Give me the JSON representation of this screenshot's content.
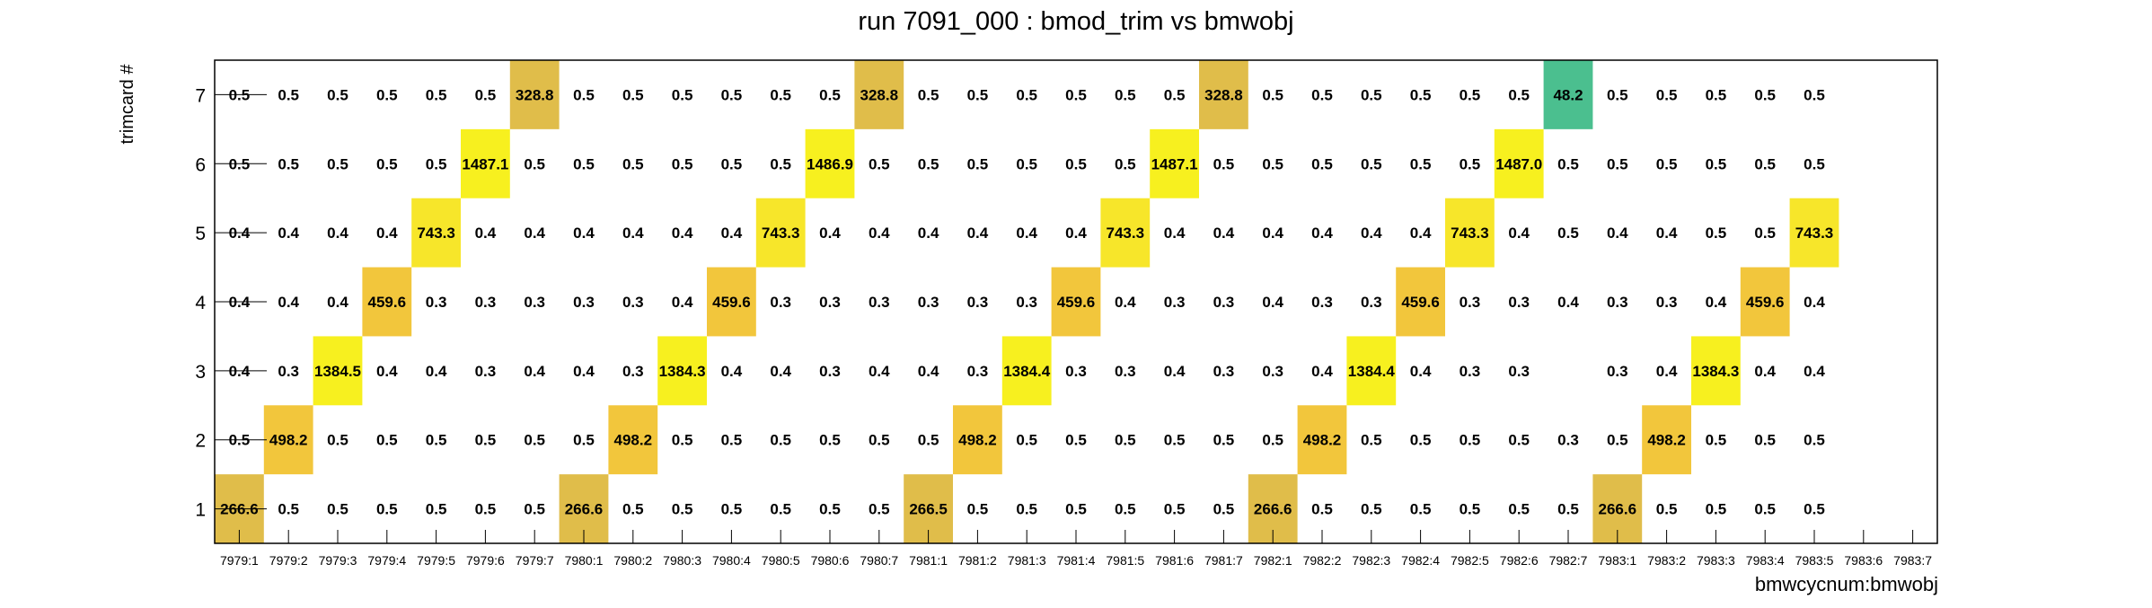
{
  "colors": {
    "background": "#ffffff",
    "frame": "#000000",
    "low_value_color": "#4bbf8f",
    "mid_value_color": "#e0bd4a",
    "high_value_color": "#f7f01f"
  },
  "chart_data": {
    "type": "heatmap",
    "title": "run 7091_000 : bmod_trim vs bmwobj",
    "xlabel": "bmwcycnum:bmwobj",
    "ylabel": "trimcard #",
    "x_categories": [
      "7979:1",
      "7979:2",
      "7979:3",
      "7979:4",
      "7979:5",
      "7979:6",
      "7979:7",
      "7980:1",
      "7980:2",
      "7980:3",
      "7980:4",
      "7980:5",
      "7980:6",
      "7980:7",
      "7981:1",
      "7981:2",
      "7981:3",
      "7981:4",
      "7981:5",
      "7981:6",
      "7981:7",
      "7982:1",
      "7982:2",
      "7982:3",
      "7982:4",
      "7982:5",
      "7982:6",
      "7982:7",
      "7983:1",
      "7983:2",
      "7983:3",
      "7983:4",
      "7983:5",
      "7983:6",
      "7983:7"
    ],
    "y_categories": [
      "1",
      "2",
      "3",
      "4",
      "5",
      "6",
      "7"
    ],
    "values": [
      [
        "266.6",
        "0.5",
        "0.5",
        "0.5",
        "0.5",
        "0.5",
        "0.5",
        "266.6",
        "0.5",
        "0.5",
        "0.5",
        "0.5",
        "0.5",
        "0.5",
        "266.5",
        "0.5",
        "0.5",
        "0.5",
        "0.5",
        "0.5",
        "0.5",
        "266.6",
        "0.5",
        "0.5",
        "0.5",
        "0.5",
        "0.5",
        "0.5",
        "266.6",
        "0.5",
        "0.5",
        "0.5",
        "0.5",
        "",
        ""
      ],
      [
        "0.5",
        "498.2",
        "0.5",
        "0.5",
        "0.5",
        "0.5",
        "0.5",
        "0.5",
        "498.2",
        "0.5",
        "0.5",
        "0.5",
        "0.5",
        "0.5",
        "0.5",
        "498.2",
        "0.5",
        "0.5",
        "0.5",
        "0.5",
        "0.5",
        "0.5",
        "498.2",
        "0.5",
        "0.5",
        "0.5",
        "0.5",
        "0.3",
        "0.5",
        "498.2",
        "0.5",
        "0.5",
        "0.5",
        "",
        ""
      ],
      [
        "0.4",
        "0.3",
        "1384.5",
        "0.4",
        "0.4",
        "0.3",
        "0.4",
        "0.4",
        "0.3",
        "1384.3",
        "0.4",
        "0.4",
        "0.3",
        "0.4",
        "0.4",
        "0.3",
        "1384.4",
        "0.3",
        "0.3",
        "0.4",
        "0.3",
        "0.3",
        "0.4",
        "1384.4",
        "0.4",
        "0.3",
        "0.3",
        "",
        "0.3",
        "0.4",
        "1384.3",
        "0.4",
        "0.4",
        "",
        ""
      ],
      [
        "0.4",
        "0.4",
        "0.4",
        "459.6",
        "0.3",
        "0.3",
        "0.3",
        "0.3",
        "0.3",
        "0.4",
        "459.6",
        "0.3",
        "0.3",
        "0.3",
        "0.3",
        "0.3",
        "0.3",
        "459.6",
        "0.4",
        "0.3",
        "0.3",
        "0.4",
        "0.3",
        "0.3",
        "459.6",
        "0.3",
        "0.3",
        "0.4",
        "0.3",
        "0.3",
        "0.4",
        "459.6",
        "0.4",
        "",
        ""
      ],
      [
        "0.4",
        "0.4",
        "0.4",
        "0.4",
        "743.3",
        "0.4",
        "0.4",
        "0.4",
        "0.4",
        "0.4",
        "0.4",
        "743.3",
        "0.4",
        "0.4",
        "0.4",
        "0.4",
        "0.4",
        "0.4",
        "743.3",
        "0.4",
        "0.4",
        "0.4",
        "0.4",
        "0.4",
        "0.4",
        "743.3",
        "0.4",
        "0.5",
        "0.4",
        "0.4",
        "0.5",
        "0.5",
        "743.3",
        "",
        ""
      ],
      [
        "0.5",
        "0.5",
        "0.5",
        "0.5",
        "0.5",
        "1487.1",
        "0.5",
        "0.5",
        "0.5",
        "0.5",
        "0.5",
        "0.5",
        "1486.9",
        "0.5",
        "0.5",
        "0.5",
        "0.5",
        "0.5",
        "0.5",
        "1487.1",
        "0.5",
        "0.5",
        "0.5",
        "0.5",
        "0.5",
        "0.5",
        "1487.0",
        "0.5",
        "0.5",
        "0.5",
        "0.5",
        "0.5",
        "0.5",
        "",
        ""
      ],
      [
        "0.5",
        "0.5",
        "0.5",
        "0.5",
        "0.5",
        "0.5",
        "328.8",
        "0.5",
        "0.5",
        "0.5",
        "0.5",
        "0.5",
        "0.5",
        "328.8",
        "0.5",
        "0.5",
        "0.5",
        "0.5",
        "0.5",
        "0.5",
        "328.8",
        "0.5",
        "0.5",
        "0.5",
        "0.5",
        "0.5",
        "0.5",
        "48.2",
        "0.5",
        "0.5",
        "0.5",
        "0.5",
        "0.5",
        "",
        ""
      ]
    ],
    "value_colors": {
      "48.2": "#4bbf8f",
      "266.6": "#e0bd4a",
      "266.5": "#e0bd4a",
      "328.8": "#e0bd4a",
      "459.6": "#f2c63c",
      "498.2": "#f2c63c",
      "743.3": "#f7e62a",
      "1384.5": "#f7f01f",
      "1384.4": "#f7f01f",
      "1384.3": "#f7f01f",
      "1487.1": "#f7f01f",
      "1487.0": "#f7f01f",
      "1486.9": "#f7f01f"
    },
    "grid": false,
    "legend": "none"
  }
}
